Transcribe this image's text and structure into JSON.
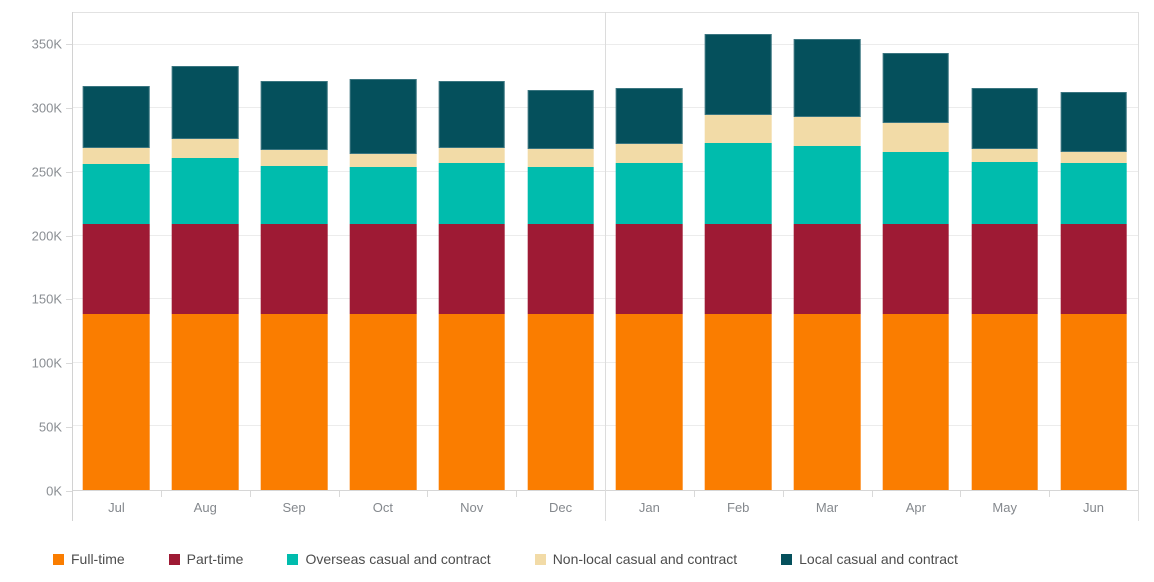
{
  "chart_data": {
    "type": "bar",
    "stacked": true,
    "title": "",
    "categories": [
      "Jul",
      "Aug",
      "Sep",
      "Oct",
      "Nov",
      "Dec",
      "Jan",
      "Feb",
      "Mar",
      "Apr",
      "May",
      "Jun"
    ],
    "panel_split_index": 6,
    "unit": "K",
    "ylim": [
      0,
      375
    ],
    "grid": true,
    "legend_position": "bottom",
    "yticks": [
      {
        "value": 0,
        "label": "0K"
      },
      {
        "value": 50,
        "label": "50K"
      },
      {
        "value": 100,
        "label": "100K"
      },
      {
        "value": 150,
        "label": "150K"
      },
      {
        "value": 200,
        "label": "200K"
      },
      {
        "value": 250,
        "label": "250K"
      },
      {
        "value": 300,
        "label": "300K"
      },
      {
        "value": 350,
        "label": "350K"
      }
    ],
    "series": [
      {
        "name": "Full-time",
        "color": "#FA7D00",
        "values": [
          138,
          138,
          138,
          138,
          138,
          138,
          138,
          138,
          138,
          138,
          138,
          138
        ]
      },
      {
        "name": "Part-time",
        "color": "#9E1A34",
        "values": [
          70,
          70,
          70,
          70,
          70,
          70,
          70,
          70,
          70,
          70,
          70,
          70
        ]
      },
      {
        "name": "Overseas casual and contract",
        "color": "#00BCAD",
        "values": [
          47,
          52,
          46,
          45,
          48,
          45,
          48,
          64,
          61,
          57,
          49,
          48
        ]
      },
      {
        "name": "Non-local casual and contract",
        "color": "#F2DBA7",
        "values": [
          13,
          15,
          12,
          10,
          12,
          14,
          15,
          22,
          23,
          22,
          10,
          9
        ]
      },
      {
        "name": "Local casual and contract",
        "color": "#05505C",
        "values": [
          48,
          57,
          54,
          59,
          52,
          46,
          44,
          63,
          61,
          55,
          48,
          47
        ]
      }
    ],
    "totals": [
      316,
      332,
      320,
      322,
      320,
      313,
      315,
      357,
      353,
      342,
      315,
      312
    ]
  },
  "colors": {
    "background": "#FFFFFF",
    "grid_line": "#ECECEC",
    "pane_border": "#E2E2E2",
    "axis_line": "#D2D2D2",
    "panel_divider": "#DCDCDC",
    "tick": "#D9D9D9",
    "axis_label_text": "#8A8E93",
    "legend_text": "#4D4D4D"
  }
}
